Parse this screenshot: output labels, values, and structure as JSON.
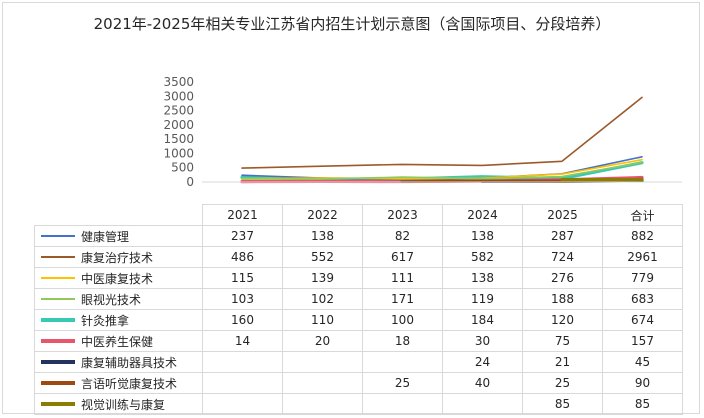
{
  "chart_data": {
    "type": "line",
    "title": "2021年-2025年相关专业江苏省内招生计划示意图（含国际项目、分段培养）",
    "categories": [
      "2021",
      "2022",
      "2023",
      "2024",
      "2025",
      "合计"
    ],
    "y_ticks": [
      "0",
      "500",
      "1000",
      "1500",
      "2000",
      "2500",
      "3000",
      "3500"
    ],
    "ylim": [
      0,
      3500
    ],
    "grid": false,
    "legend": "data-table",
    "series": [
      {
        "name": "健康管理",
        "color": "#4472c4",
        "weight": "thin",
        "values": [
          237,
          138,
          82,
          138,
          287,
          882
        ],
        "labels": [
          "237",
          "138",
          "82",
          "138",
          "287",
          "882"
        ]
      },
      {
        "name": "康复治疗技术",
        "color": "#9c5a2b",
        "weight": "thin",
        "values": [
          486,
          552,
          617,
          582,
          724,
          2961
        ],
        "labels": [
          "486",
          "552",
          "617",
          "582",
          "724",
          "2961"
        ]
      },
      {
        "name": "中医康复技术",
        "color": "#ffc000",
        "weight": "thin",
        "values": [
          115,
          139,
          111,
          138,
          276,
          779
        ],
        "labels": [
          "115",
          "139",
          "111",
          "138",
          "276",
          "779"
        ]
      },
      {
        "name": "眼视光技术",
        "color": "#92c85a",
        "weight": "thin",
        "values": [
          103,
          102,
          171,
          119,
          188,
          683
        ],
        "labels": [
          "103",
          "102",
          "171",
          "119",
          "188",
          "683"
        ]
      },
      {
        "name": "针灸推拿",
        "color": "#36c9b4",
        "weight": "thick",
        "values": [
          160,
          110,
          100,
          184,
          120,
          674
        ],
        "labels": [
          "160",
          "110",
          "100",
          "184",
          "120",
          "674"
        ]
      },
      {
        "name": "中医养生保健",
        "color": "#e8566c",
        "weight": "thick",
        "values": [
          14,
          20,
          18,
          30,
          75,
          157
        ],
        "labels": [
          "14",
          "20",
          "18",
          "30",
          "75",
          "157"
        ]
      },
      {
        "name": "康复辅助器具技术",
        "color": "#24335e",
        "weight": "thick",
        "values": [
          null,
          null,
          null,
          24,
          21,
          45
        ],
        "labels": [
          "",
          "",
          "",
          "24",
          "21",
          "45"
        ]
      },
      {
        "name": "言语听觉康复技术",
        "color": "#9c4a12",
        "weight": "thick",
        "values": [
          null,
          null,
          25,
          40,
          25,
          90
        ],
        "labels": [
          "",
          "",
          "25",
          "40",
          "25",
          "90"
        ]
      },
      {
        "name": "视觉训练与康复",
        "color": "#8b7d00",
        "weight": "thick",
        "values": [
          null,
          null,
          null,
          null,
          85,
          85
        ],
        "labels": [
          "",
          "",
          "",
          "",
          "85",
          "85"
        ]
      }
    ]
  }
}
